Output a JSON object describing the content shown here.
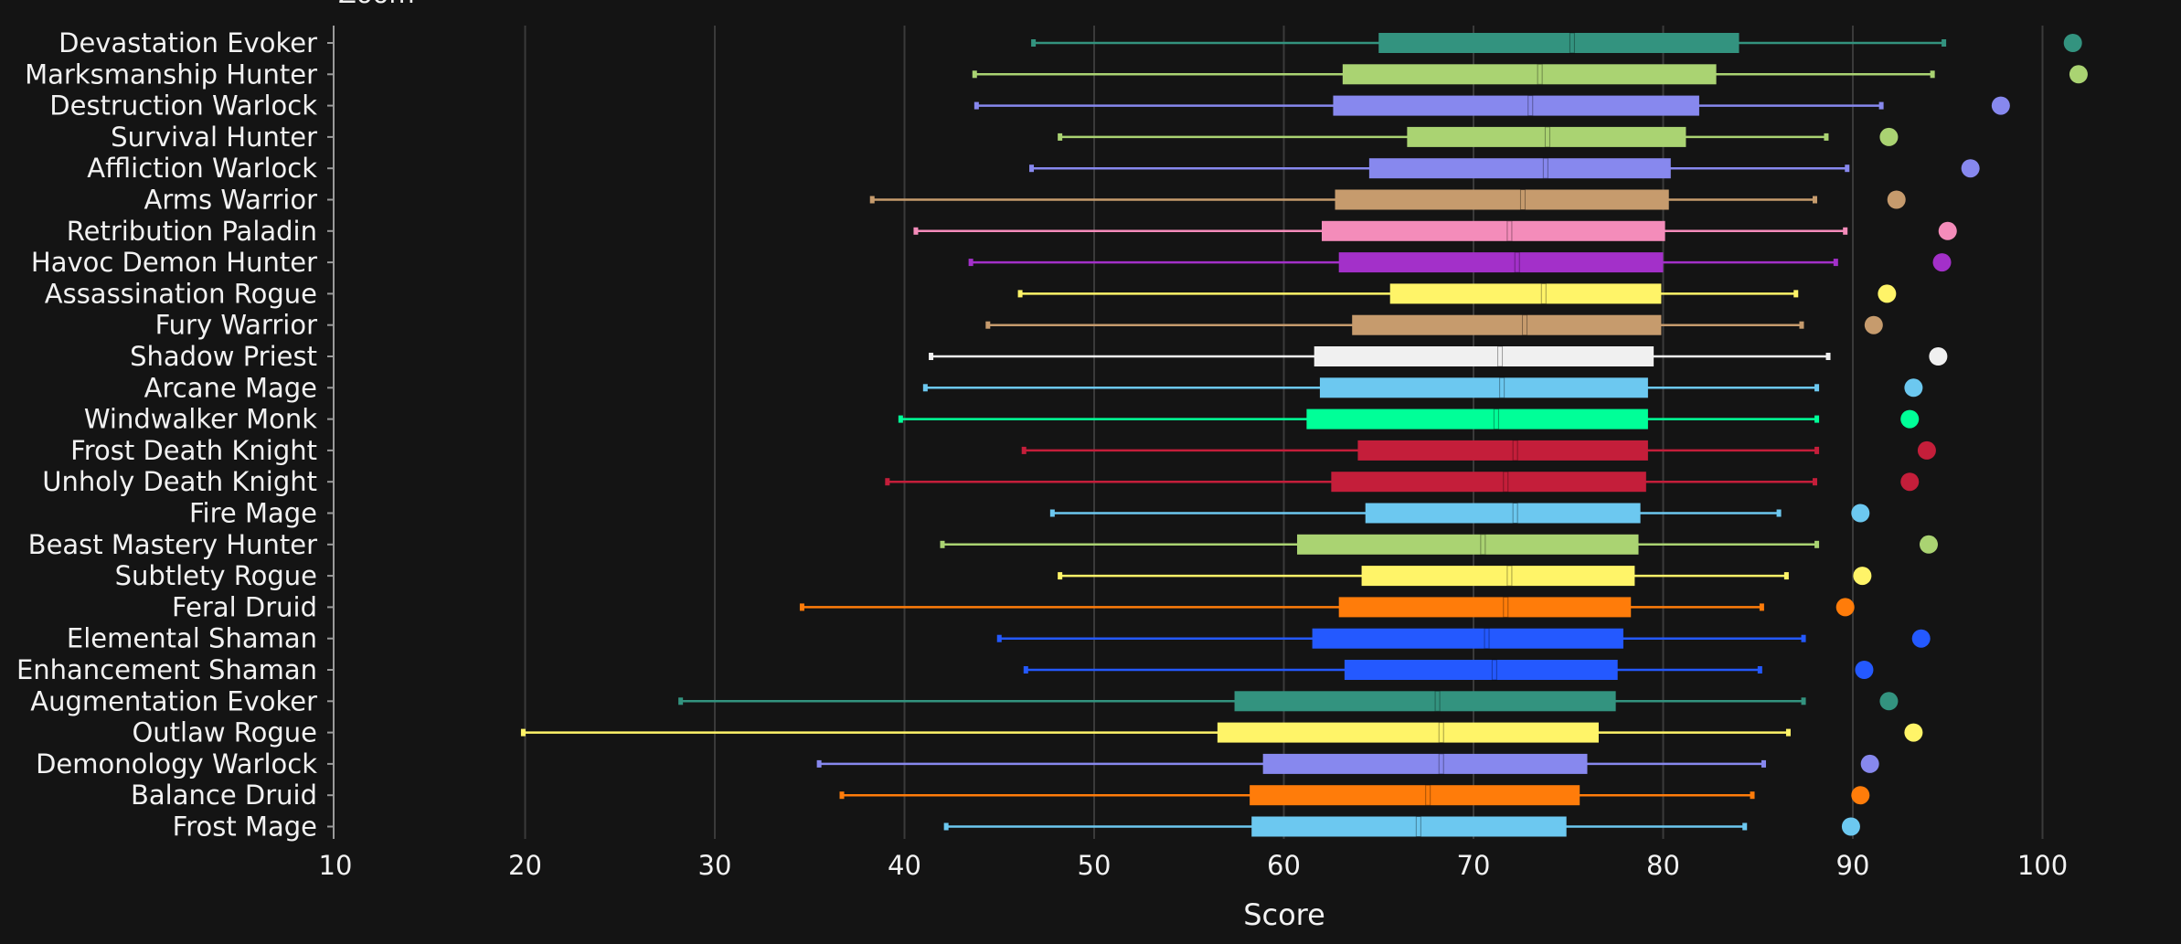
{
  "top_text": "Zoom",
  "chart_data": {
    "type": "box",
    "orientation": "horizontal",
    "xlabel": "Score",
    "xlim": [
      10,
      105
    ],
    "xticks": [
      10,
      20,
      30,
      40,
      50,
      60,
      70,
      80,
      90,
      100
    ],
    "grid": true,
    "legend": "none",
    "items": [
      {
        "name": "Devastation Evoker",
        "color": "#33937f",
        "min": 46.8,
        "q1": 65.0,
        "median": 75.2,
        "q3": 84.0,
        "max": 94.8,
        "outlier": 101.6
      },
      {
        "name": "Marksmanship Hunter",
        "color": "#aad372",
        "min": 43.7,
        "q1": 63.1,
        "median": 73.5,
        "q3": 82.8,
        "max": 94.2,
        "outlier": 101.9
      },
      {
        "name": "Destruction Warlock",
        "color": "#8788ee",
        "min": 43.8,
        "q1": 62.6,
        "median": 73.0,
        "q3": 81.9,
        "max": 91.5,
        "outlier": 97.8
      },
      {
        "name": "Survival Hunter",
        "color": "#aad372",
        "min": 48.2,
        "q1": 66.5,
        "median": 73.9,
        "q3": 81.2,
        "max": 88.6,
        "outlier": 91.9
      },
      {
        "name": "Affliction Warlock",
        "color": "#8788ee",
        "min": 46.7,
        "q1": 64.5,
        "median": 73.8,
        "q3": 80.4,
        "max": 89.7,
        "outlier": 96.2
      },
      {
        "name": "Arms Warrior",
        "color": "#c69b6d",
        "min": 38.3,
        "q1": 62.7,
        "median": 72.6,
        "q3": 80.3,
        "max": 88.0,
        "outlier": 92.3
      },
      {
        "name": "Retribution Paladin",
        "color": "#f48cba",
        "min": 40.6,
        "q1": 62.0,
        "median": 71.9,
        "q3": 80.1,
        "max": 89.6,
        "outlier": 95.0
      },
      {
        "name": "Havoc Demon Hunter",
        "color": "#a330c9",
        "min": 43.5,
        "q1": 62.9,
        "median": 72.3,
        "q3": 80.0,
        "max": 89.1,
        "outlier": 94.7
      },
      {
        "name": "Assassination Rogue",
        "color": "#fff468",
        "min": 46.1,
        "q1": 65.6,
        "median": 73.7,
        "q3": 79.9,
        "max": 87.0,
        "outlier": 91.8
      },
      {
        "name": "Fury Warrior",
        "color": "#c69b6d",
        "min": 44.4,
        "q1": 63.6,
        "median": 72.7,
        "q3": 79.9,
        "max": 87.3,
        "outlier": 91.1
      },
      {
        "name": "Shadow Priest",
        "color": "#f0f0f0",
        "min": 41.4,
        "q1": 61.6,
        "median": 71.4,
        "q3": 79.5,
        "max": 88.7,
        "outlier": 94.5
      },
      {
        "name": "Arcane Mage",
        "color": "#6cc8f0",
        "min": 41.1,
        "q1": 61.9,
        "median": 71.5,
        "q3": 79.2,
        "max": 88.1,
        "outlier": 93.2
      },
      {
        "name": "Windwalker Monk",
        "color": "#00ff98",
        "min": 39.8,
        "q1": 61.2,
        "median": 71.2,
        "q3": 79.2,
        "max": 88.1,
        "outlier": 93.0
      },
      {
        "name": "Frost Death Knight",
        "color": "#c41e3a",
        "min": 46.3,
        "q1": 63.9,
        "median": 72.2,
        "q3": 79.2,
        "max": 88.1,
        "outlier": 93.9
      },
      {
        "name": "Unholy Death Knight",
        "color": "#c41e3a",
        "min": 39.1,
        "q1": 62.5,
        "median": 71.7,
        "q3": 79.1,
        "max": 88.0,
        "outlier": 93.0
      },
      {
        "name": "Fire Mage",
        "color": "#6cc8f0",
        "min": 47.8,
        "q1": 64.3,
        "median": 72.2,
        "q3": 78.8,
        "max": 86.1,
        "outlier": 90.4
      },
      {
        "name": "Beast Mastery Hunter",
        "color": "#aad372",
        "min": 42.0,
        "q1": 60.7,
        "median": 70.5,
        "q3": 78.7,
        "max": 88.1,
        "outlier": 94.0
      },
      {
        "name": "Subtlety Rogue",
        "color": "#fff468",
        "min": 48.2,
        "q1": 64.1,
        "median": 71.9,
        "q3": 78.5,
        "max": 86.5,
        "outlier": 90.5
      },
      {
        "name": "Feral Druid",
        "color": "#ff7c0a",
        "min": 34.6,
        "q1": 62.9,
        "median": 71.7,
        "q3": 78.3,
        "max": 85.2,
        "outlier": 89.6
      },
      {
        "name": "Elemental Shaman",
        "color": "#2459ff",
        "min": 45.0,
        "q1": 61.5,
        "median": 70.7,
        "q3": 77.9,
        "max": 87.4,
        "outlier": 93.6
      },
      {
        "name": "Enhancement Shaman",
        "color": "#2459ff",
        "min": 46.4,
        "q1": 63.2,
        "median": 71.1,
        "q3": 77.6,
        "max": 85.1,
        "outlier": 90.6
      },
      {
        "name": "Augmentation Evoker",
        "color": "#33937f",
        "min": 28.2,
        "q1": 57.4,
        "median": 68.1,
        "q3": 77.5,
        "max": 87.4,
        "outlier": 91.9
      },
      {
        "name": "Outlaw Rogue",
        "color": "#fff468",
        "min": 19.9,
        "q1": 56.5,
        "median": 68.3,
        "q3": 76.6,
        "max": 86.6,
        "outlier": 93.2
      },
      {
        "name": "Demonology Warlock",
        "color": "#8788ee",
        "min": 35.5,
        "q1": 58.9,
        "median": 68.3,
        "q3": 76.0,
        "max": 85.3,
        "outlier": 90.9
      },
      {
        "name": "Balance Druid",
        "color": "#ff7c0a",
        "min": 36.7,
        "q1": 58.2,
        "median": 67.6,
        "q3": 75.6,
        "max": 84.7,
        "outlier": 90.4
      },
      {
        "name": "Frost Mage",
        "color": "#6cc8f0",
        "min": 42.2,
        "q1": 58.3,
        "median": 67.1,
        "q3": 74.9,
        "max": 84.3,
        "outlier": 89.9
      }
    ]
  }
}
